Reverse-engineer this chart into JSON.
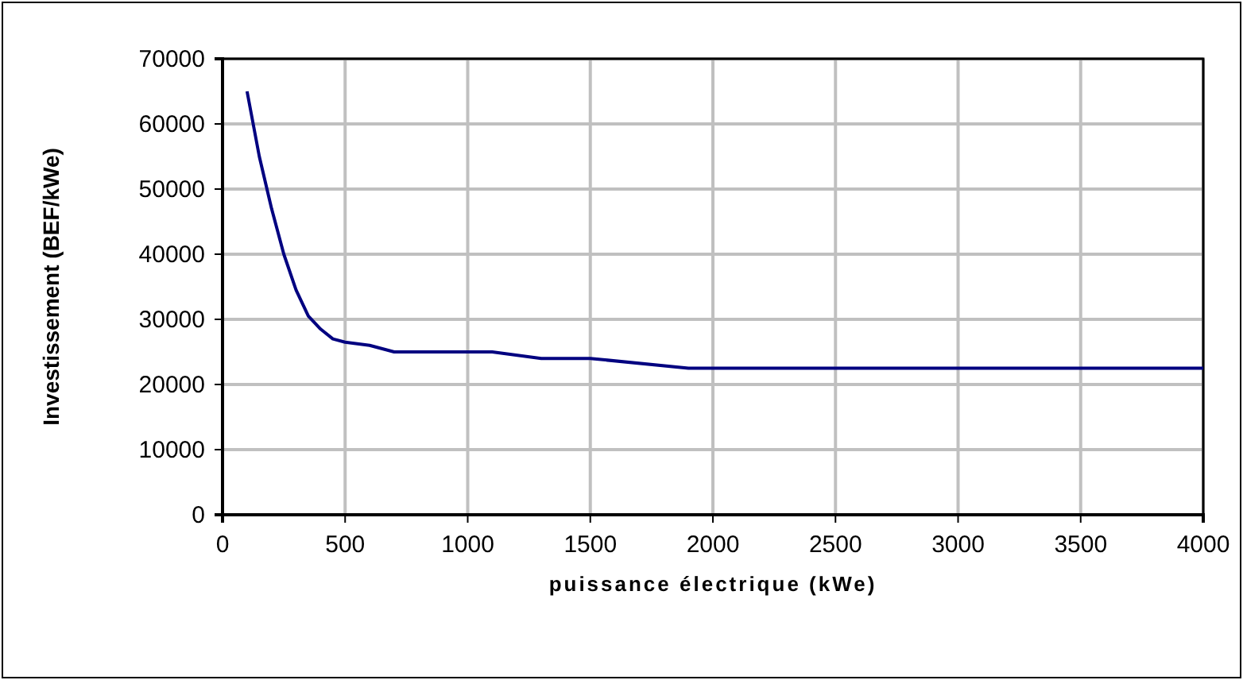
{
  "chart_data": {
    "type": "line",
    "xlabel": "puissance électrique (kWe)",
    "ylabel": "Investissement (BEF/kWe)",
    "x": [
      100,
      150,
      200,
      250,
      300,
      350,
      400,
      450,
      500,
      600,
      700,
      1100,
      1300,
      1500,
      1900,
      4000
    ],
    "series": [
      {
        "color": "#000080",
        "values": [
          65000,
          55000,
          47000,
          40000,
          34500,
          30500,
          28500,
          27000,
          26500,
          26000,
          25000,
          25000,
          24000,
          24000,
          22500,
          22500
        ]
      }
    ],
    "xlim": [
      0,
      4000
    ],
    "xticks": [
      0,
      500,
      1000,
      1500,
      2000,
      2500,
      3000,
      3500,
      4000
    ],
    "ylim": [
      0,
      70000
    ],
    "yticks": [
      0,
      10000,
      20000,
      30000,
      40000,
      50000,
      60000,
      70000
    ],
    "grid": true,
    "marker": "none",
    "line_style": "solid"
  }
}
